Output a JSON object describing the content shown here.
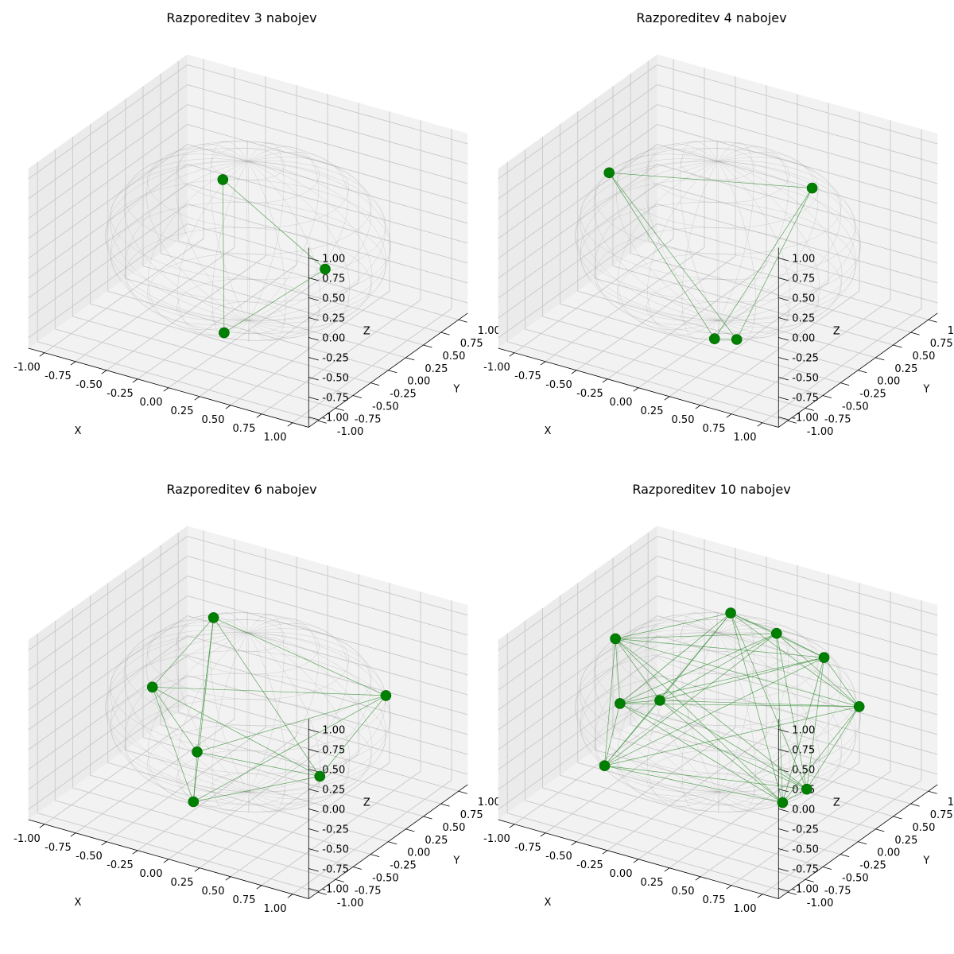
{
  "figure": {
    "background": "#ffffff"
  },
  "style": {
    "pane_color": "#f2f2f2",
    "pane_side_color": "#ebebeb",
    "grid_color": "#c8c8c8",
    "sphere_color": "#999999",
    "charge_color": "#008000",
    "bond_color": "#2e8b2e"
  },
  "chart_data": [
    {
      "type": "scatter3d",
      "title": "Razporeditev 3 nabojev",
      "xlabel": "X",
      "ylabel": "Y",
      "zlabel": "Z",
      "xlim": [
        -1,
        1
      ],
      "ylim": [
        -1,
        1
      ],
      "zlim": [
        -1,
        1
      ],
      "ticks": [
        "-1.00",
        "-0.75",
        "-0.50",
        "-0.25",
        "0.00",
        "0.25",
        "0.50",
        "0.75",
        "1.00"
      ],
      "grid": true,
      "wireframe_sphere": true,
      "lines": "all-pairs",
      "points": [
        {
          "x": -0.64,
          "y": 0.77,
          "z": 0.0
        },
        {
          "x": 0.86,
          "y": -0.42,
          "z": 0.29
        },
        {
          "x": 0.0,
          "y": -0.34,
          "z": -0.94
        }
      ]
    },
    {
      "type": "scatter3d",
      "title": "Razporeditev 4 nabojev",
      "xlabel": "X",
      "ylabel": "Y",
      "zlabel": "Z",
      "xlim": [
        -1,
        1
      ],
      "ylim": [
        -1,
        1
      ],
      "zlim": [
        -1,
        1
      ],
      "ticks": [
        "-1.00",
        "-0.75",
        "-0.50",
        "-0.25",
        "0.00",
        "0.25",
        "0.50",
        "0.75",
        "1.00"
      ],
      "grid": true,
      "wireframe_sphere": true,
      "lines": "all-pairs",
      "points": [
        {
          "x": -0.82,
          "y": -0.1,
          "z": 0.56
        },
        {
          "x": 0.21,
          "y": 0.97,
          "z": 0.14
        },
        {
          "x": 0.43,
          "y": -0.49,
          "z": -0.74
        },
        {
          "x": 0.2,
          "y": -0.4,
          "z": -0.89
        }
      ]
    },
    {
      "type": "scatter3d",
      "title": "Razporeditev 6 nabojev",
      "xlabel": "X",
      "ylabel": "Y",
      "zlabel": "Z",
      "xlim": [
        -1,
        1
      ],
      "ylim": [
        -1,
        1
      ],
      "zlim": [
        -1,
        1
      ],
      "ticks": [
        "-1.00",
        "-0.75",
        "-0.50",
        "-0.25",
        "0.00",
        "0.25",
        "0.50",
        "0.75",
        "1.00"
      ],
      "grid": true,
      "wireframe_sphere": true,
      "lines": "all-pairs",
      "points": [
        {
          "x": -0.38,
          "y": 0.18,
          "z": 0.91
        },
        {
          "x": 0.72,
          "y": 0.69,
          "z": 0.09
        },
        {
          "x": 0.14,
          "y": -0.97,
          "z": 0.18
        },
        {
          "x": -0.93,
          "y": 0.28,
          "z": -0.27
        },
        {
          "x": -0.14,
          "y": -0.53,
          "z": -0.85
        },
        {
          "x": 0.38,
          "y": 0.35,
          "z": -0.86
        }
      ]
    },
    {
      "type": "scatter3d",
      "title": "Razporeditev 10 nabojev",
      "xlabel": "X",
      "ylabel": "Y",
      "zlabel": "Z",
      "xlim": [
        -1,
        1
      ],
      "ylim": [
        -1,
        1
      ],
      "zlim": [
        -1,
        1
      ],
      "ticks": [
        "-1.00",
        "-0.75",
        "-0.50",
        "-0.25",
        "0.00",
        "0.25",
        "0.50",
        "0.75",
        "1.00"
      ],
      "grid": true,
      "wireframe_sphere": true,
      "lines": "all-pairs",
      "points": [
        {
          "x": -0.22,
          "y": 0.57,
          "z": 0.79
        },
        {
          "x": -0.86,
          "y": 0.06,
          "z": 0.51
        },
        {
          "x": 0.28,
          "y": 0.34,
          "z": 0.9
        },
        {
          "x": 0.59,
          "y": 0.47,
          "z": 0.65
        },
        {
          "x": 0.81,
          "y": 0.58,
          "z": 0.06
        },
        {
          "x": -0.33,
          "y": -0.81,
          "z": 0.48
        },
        {
          "x": -0.59,
          "y": -0.57,
          "z": -0.57
        },
        {
          "x": -0.74,
          "y": 0.48,
          "z": -0.48
        },
        {
          "x": 0.59,
          "y": -0.12,
          "z": -0.8
        },
        {
          "x": 0.66,
          "y": 0.1,
          "z": -0.74
        }
      ]
    }
  ]
}
